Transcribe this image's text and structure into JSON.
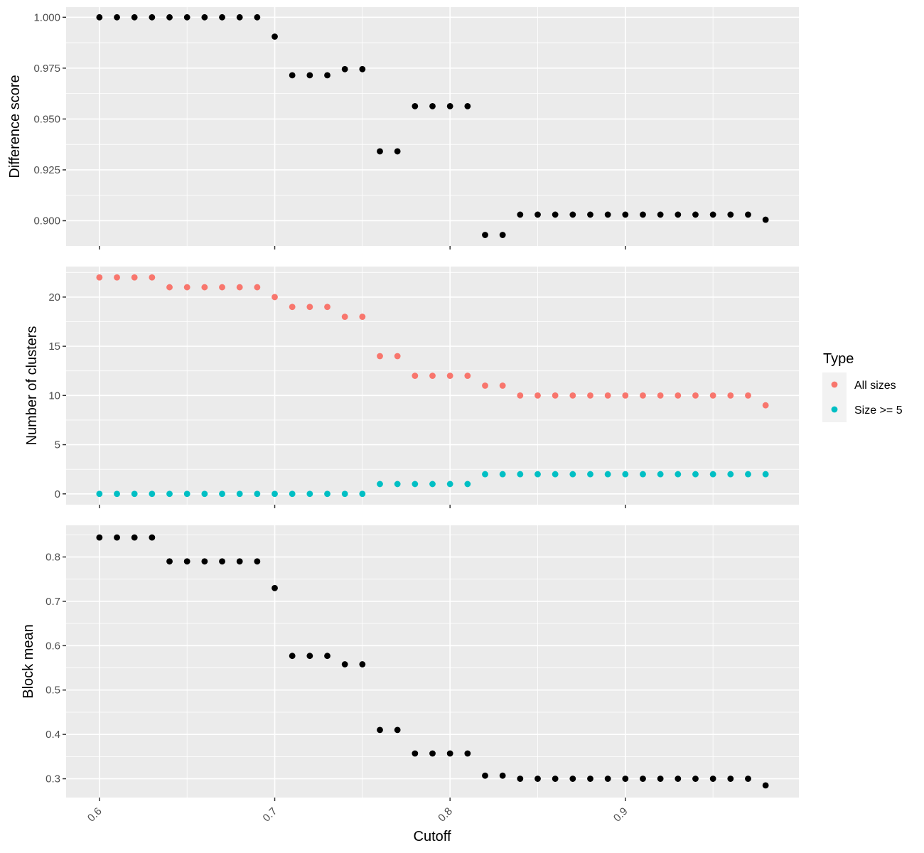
{
  "chart_data": {
    "type": "scatter",
    "x_label": "Cutoff",
    "x_range": [
      0.581,
      0.999
    ],
    "x_ticks": [
      0.6,
      0.7,
      0.8,
      0.9
    ],
    "x_tick_labels": [
      "0.6",
      "0.7",
      "0.8",
      "0.9"
    ],
    "x_tick_label_rotation": "45 degrees",
    "grid": true,
    "x": [
      0.6,
      0.61,
      0.62,
      0.63,
      0.64,
      0.65,
      0.66,
      0.67,
      0.68,
      0.69,
      0.7,
      0.71,
      0.72,
      0.73,
      0.74,
      0.75,
      0.76,
      0.77,
      0.78,
      0.79,
      0.8,
      0.81,
      0.82,
      0.83,
      0.84,
      0.85,
      0.86,
      0.87,
      0.88,
      0.89,
      0.9,
      0.91,
      0.92,
      0.93,
      0.94,
      0.95,
      0.96,
      0.97,
      0.98
    ],
    "panels": [
      {
        "ylabel": "Difference score",
        "ylim": [
          0.8876,
          1.005
        ],
        "y_ticks": [
          0.9,
          0.925,
          0.95,
          0.975,
          1.0
        ],
        "y_tick_labels": [
          "0.900",
          "0.925",
          "0.950",
          "0.975",
          "1.000"
        ],
        "series": [
          {
            "color": "#000000",
            "values": [
              1.0,
              1.0,
              1.0,
              1.0,
              1.0,
              1.0,
              1.0,
              1.0,
              1.0,
              1.0,
              0.9905,
              0.9715,
              0.9715,
              0.9715,
              0.9745,
              0.9745,
              0.9341,
              0.9341,
              0.9563,
              0.9563,
              0.9563,
              0.9563,
              0.893,
              0.893,
              0.903,
              0.903,
              0.903,
              0.903,
              0.903,
              0.903,
              0.903,
              0.903,
              0.903,
              0.903,
              0.903,
              0.903,
              0.903,
              0.903,
              0.9005
            ]
          }
        ]
      },
      {
        "ylabel": "Number of clusters",
        "ylim": [
          -1.1,
          23.1
        ],
        "y_ticks": [
          0,
          5,
          10,
          15,
          20
        ],
        "y_tick_labels": [
          "0",
          "5",
          "10",
          "15",
          "20"
        ],
        "series": [
          {
            "name": "All sizes",
            "color": "#F8766D",
            "values": [
              22,
              22,
              22,
              22,
              21,
              21,
              21,
              21,
              21,
              21,
              20,
              19,
              19,
              19,
              18,
              18,
              14,
              14,
              12,
              12,
              12,
              12,
              11,
              11,
              10,
              10,
              10,
              10,
              10,
              10,
              10,
              10,
              10,
              10,
              10,
              10,
              10,
              10,
              9
            ]
          },
          {
            "name": "Size >= 5",
            "color": "#00BFC4",
            "values": [
              0,
              0,
              0,
              0,
              0,
              0,
              0,
              0,
              0,
              0,
              0,
              0,
              0,
              0,
              0,
              0,
              1,
              1,
              1,
              1,
              1,
              1,
              2,
              2,
              2,
              2,
              2,
              2,
              2,
              2,
              2,
              2,
              2,
              2,
              2,
              2,
              2,
              2,
              2
            ]
          }
        ]
      },
      {
        "ylabel": "Block mean",
        "ylim": [
          0.2576,
          0.8714
        ],
        "y_ticks": [
          0.3,
          0.4,
          0.5,
          0.6,
          0.7,
          0.8
        ],
        "y_tick_labels": [
          "0.3",
          "0.4",
          "0.5",
          "0.6",
          "0.7",
          "0.8"
        ],
        "series": [
          {
            "color": "#000000",
            "values": [
              0.844,
              0.844,
              0.844,
              0.844,
              0.79,
              0.79,
              0.79,
              0.79,
              0.79,
              0.79,
              0.73,
              0.577,
              0.577,
              0.577,
              0.558,
              0.558,
              0.41,
              0.41,
              0.357,
              0.357,
              0.357,
              0.357,
              0.307,
              0.307,
              0.3,
              0.3,
              0.3,
              0.3,
              0.3,
              0.3,
              0.3,
              0.3,
              0.3,
              0.3,
              0.3,
              0.3,
              0.3,
              0.3,
              0.285
            ]
          }
        ]
      }
    ],
    "legend": {
      "title": "Type",
      "placement": "right",
      "entries": [
        {
          "label": "All sizes",
          "color": "#F8766D"
        },
        {
          "label": "Size >= 5",
          "color": "#00BFC4"
        }
      ]
    }
  }
}
